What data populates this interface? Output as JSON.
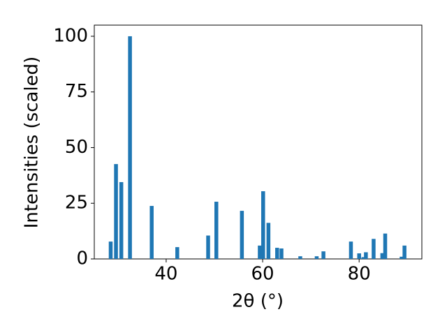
{
  "chart_data": {
    "type": "bar",
    "xlabel": "2θ (°)",
    "ylabel": "Intensities (scaled)",
    "x": [
      28.5,
      29.6,
      30.7,
      32.5,
      37.0,
      42.3,
      48.7,
      50.4,
      55.7,
      59.4,
      60.1,
      61.2,
      63.0,
      63.9,
      67.8,
      71.2,
      72.6,
      78.3,
      80.0,
      80.9,
      81.4,
      83.0,
      84.8,
      85.4,
      88.8,
      89.4
    ],
    "values": [
      7.8,
      42.6,
      34.5,
      100,
      23.8,
      5.3,
      10.5,
      25.7,
      21.6,
      6.0,
      30.4,
      16.2,
      5.0,
      4.7,
      1.2,
      1.2,
      3.4,
      7.8,
      2.5,
      0.8,
      3.0,
      9.0,
      2.6,
      11.4,
      1.0,
      6.0
    ],
    "color": "#1f77b4",
    "xlim": [
      25.1,
      93.0
    ],
    "ylim": [
      0,
      105
    ],
    "xticks": [
      40,
      60,
      80
    ],
    "yticks": [
      0,
      25,
      50,
      75,
      100
    ]
  }
}
